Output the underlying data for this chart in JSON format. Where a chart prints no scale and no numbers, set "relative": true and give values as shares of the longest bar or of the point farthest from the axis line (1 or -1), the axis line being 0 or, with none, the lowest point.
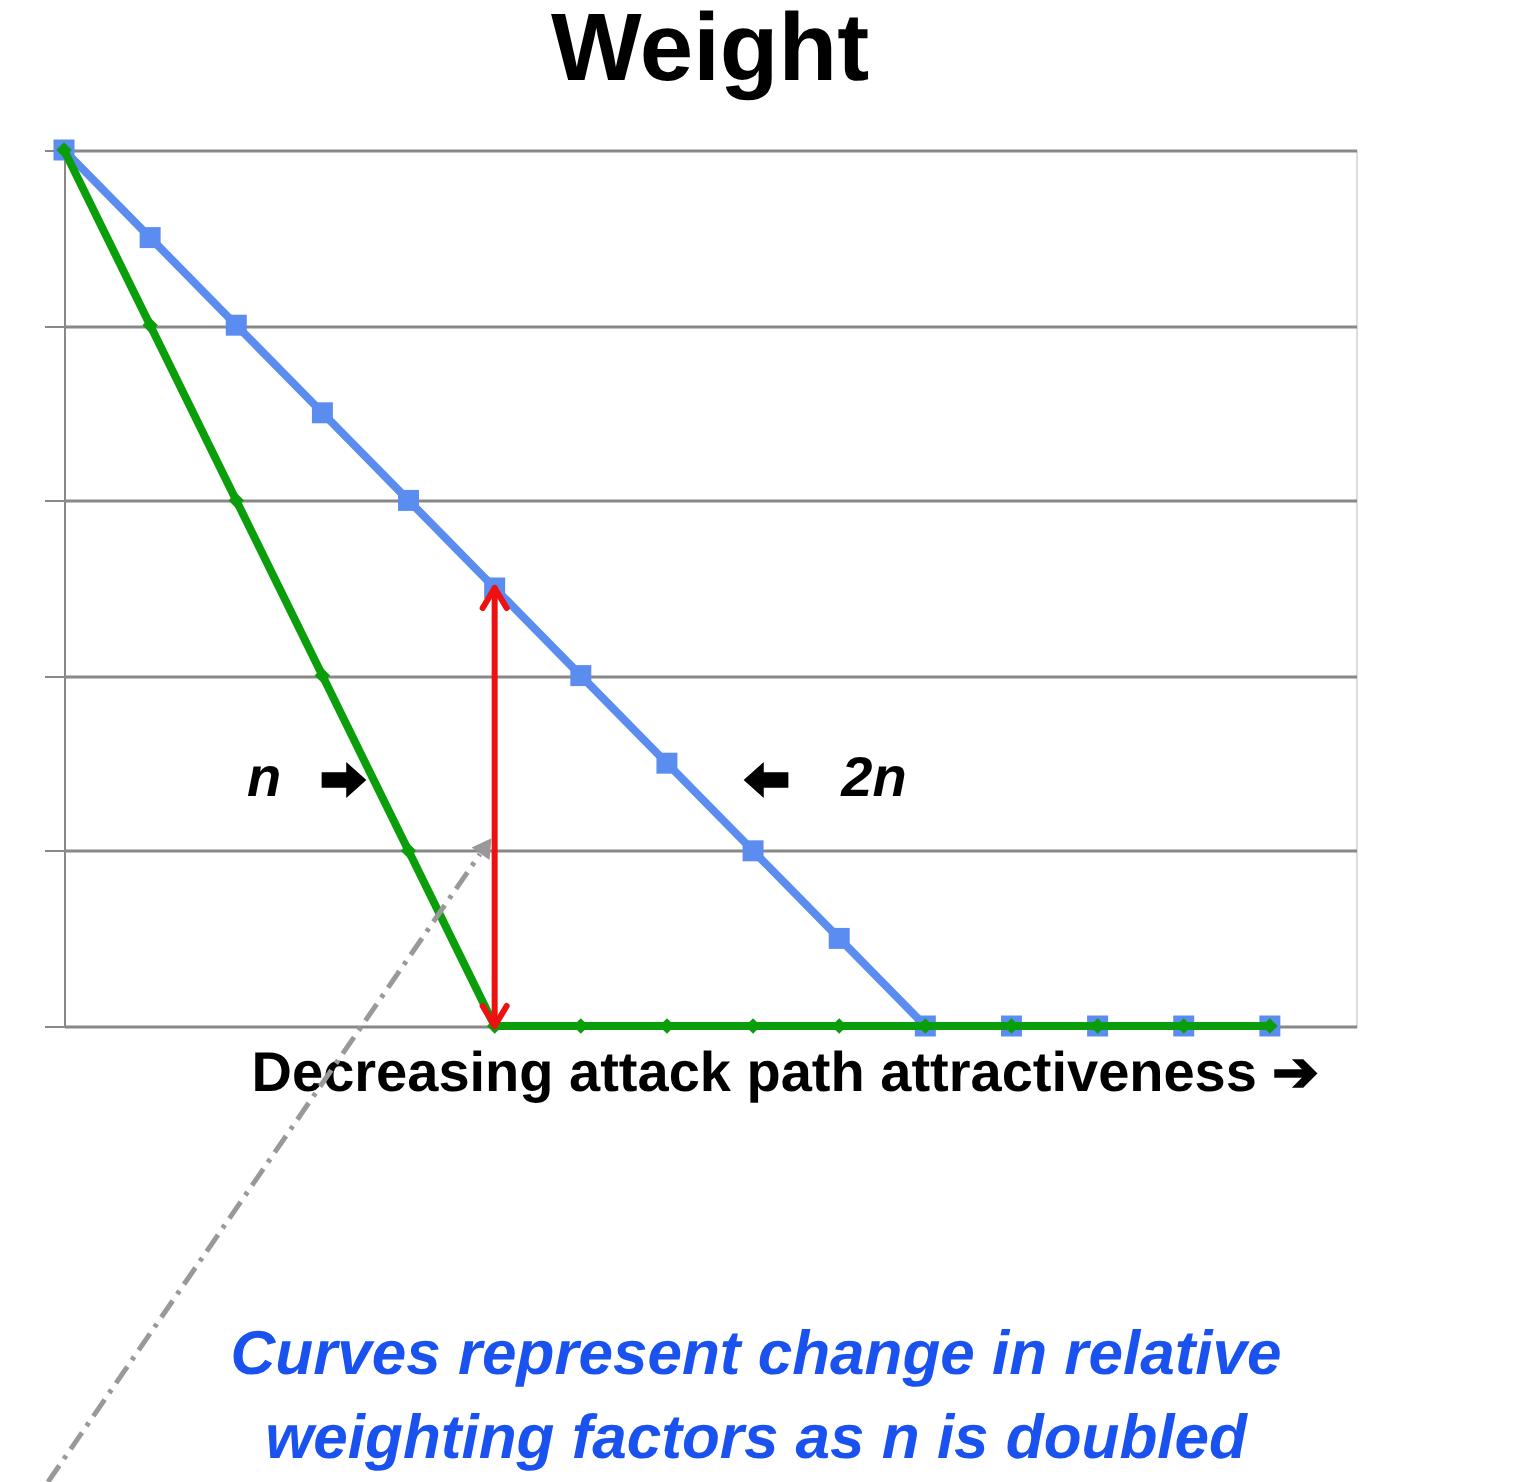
{
  "chart_data": {
    "type": "line",
    "title": "Weight",
    "xlabel": "Decreasing attack path attractiveness ➔",
    "relative": true,
    "grid": "y",
    "legend": false,
    "line_style": "solid",
    "categories": [
      null,
      null,
      null,
      null,
      null,
      null,
      null,
      null,
      null,
      null,
      null,
      null,
      null,
      null,
      null
    ],
    "series": [
      {
        "name": "2n",
        "color": "#5b8cf0",
        "marker": "square",
        "values": [
          1,
          0.9,
          0.8,
          0.7,
          0.6,
          0.5,
          0.4,
          0.3,
          0.2,
          0.1,
          0,
          0,
          0,
          0,
          0
        ]
      },
      {
        "name": "n",
        "color": "#0a9e0a",
        "marker": "diamond",
        "values": [
          1,
          0.8,
          0.6,
          0.4,
          0.2,
          0,
          0,
          0,
          0,
          0,
          0,
          0,
          0,
          0,
          0
        ]
      }
    ],
    "annotations": [
      "Curves represent change in relative weighting factors as n is doubled"
    ]
  }
}
